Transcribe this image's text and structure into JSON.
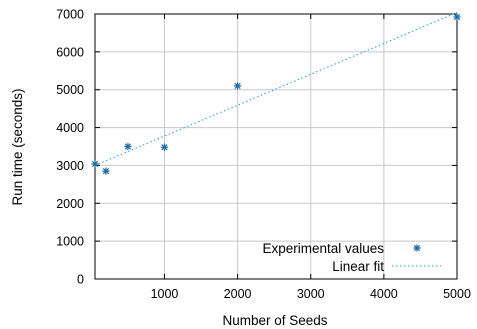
{
  "chart_data": {
    "type": "scatter",
    "xlabel": "Number of Seeds",
    "ylabel": "Run time (seconds)",
    "xlim": [
      50,
      5000
    ],
    "ylim": [
      0,
      7000
    ],
    "x_ticks": [
      1000,
      2000,
      3000,
      4000,
      5000
    ],
    "y_ticks": [
      0,
      1000,
      2000,
      3000,
      4000,
      5000,
      6000,
      7000
    ],
    "grid": true,
    "legend_position": "bottom-right",
    "series": [
      {
        "name": "Experimental values",
        "kind": "points",
        "marker": "asterisk",
        "color": "#1b6aa8",
        "x": [
          50,
          200,
          500,
          1000,
          2000,
          5000
        ],
        "y": [
          3040,
          2850,
          3500,
          3480,
          5100,
          6920
        ]
      },
      {
        "name": "Linear fit",
        "kind": "line",
        "style": "dotted",
        "color": "#1f9bd6",
        "x": [
          50,
          5000
        ],
        "y": [
          3000,
          7040
        ]
      }
    ]
  }
}
